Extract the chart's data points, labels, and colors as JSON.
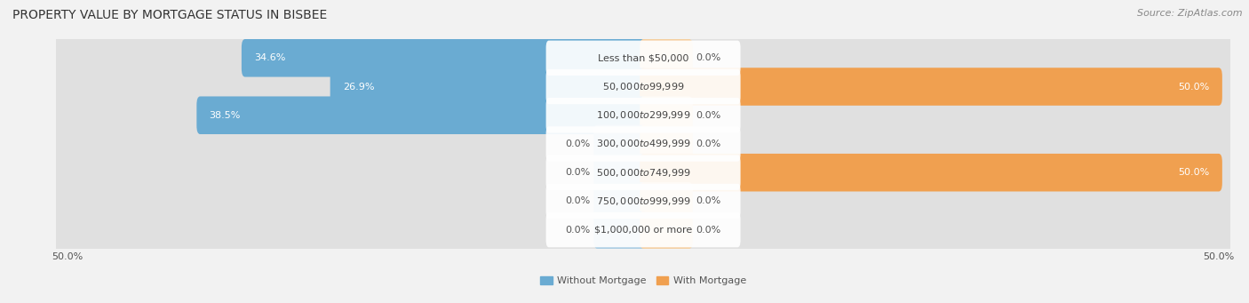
{
  "title": "PROPERTY VALUE BY MORTGAGE STATUS IN BISBEE",
  "source": "Source: ZipAtlas.com",
  "categories": [
    "Less than $50,000",
    "$50,000 to $99,999",
    "$100,000 to $299,999",
    "$300,000 to $499,999",
    "$500,000 to $749,999",
    "$750,000 to $999,999",
    "$1,000,000 or more"
  ],
  "without_mortgage": [
    34.6,
    26.9,
    38.5,
    0.0,
    0.0,
    0.0,
    0.0
  ],
  "with_mortgage": [
    0.0,
    50.0,
    0.0,
    0.0,
    50.0,
    0.0,
    0.0
  ],
  "xlim": 50.0,
  "without_color": "#6aabd2",
  "with_color": "#f0a050",
  "without_color_light": "#a8cce4",
  "with_color_light": "#f5cfa0",
  "without_label": "Without Mortgage",
  "with_label": "With Mortgage",
  "bg_color": "#f2f2f2",
  "row_bg_color": "#e0e0e0",
  "label_box_color": "#ffffff",
  "title_fontsize": 10,
  "label_fontsize": 8,
  "value_fontsize": 8,
  "tick_fontsize": 8,
  "source_fontsize": 8
}
